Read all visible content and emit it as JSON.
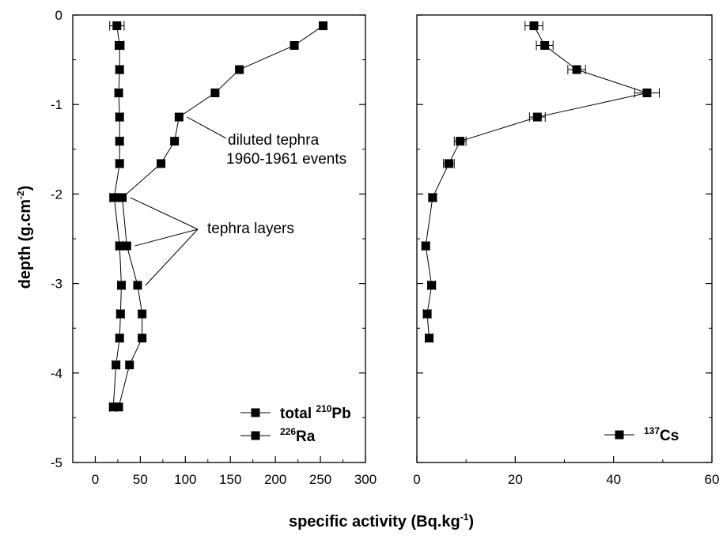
{
  "chart_data": [
    {
      "type": "scatter",
      "panel": "left",
      "xlabel": "specific activity (Bq.kg-1)",
      "ylabel": "depth (g.cm-2)",
      "xlim": [
        -25,
        300
      ],
      "ylim": [
        -5,
        0
      ],
      "xticks": [
        0,
        50,
        100,
        150,
        200,
        250,
        300
      ],
      "yticks": [
        0,
        -1,
        -2,
        -3,
        -4,
        -5
      ],
      "legend_position": "bottom-right",
      "series": [
        {
          "name": "total 210Pb",
          "legend": {
            "pre": "total ",
            "sup": "210",
            "post": "Pb"
          },
          "color": "#000000",
          "points": [
            {
              "x": 253,
              "y": -0.12
            },
            {
              "x": 221,
              "y": -0.34
            },
            {
              "x": 160,
              "y": -0.61
            },
            {
              "x": 133,
              "y": -0.87
            },
            {
              "x": 93,
              "y": -1.14
            },
            {
              "x": 88,
              "y": -1.41
            },
            {
              "x": 73,
              "y": -1.66
            },
            {
              "x": 30,
              "y": -2.04
            },
            {
              "x": 35,
              "y": -2.58
            },
            {
              "x": 47,
              "y": -3.02
            },
            {
              "x": 52,
              "y": -3.34
            },
            {
              "x": 52,
              "y": -3.61
            },
            {
              "x": 38,
              "y": -3.91
            },
            {
              "x": 26,
              "y": -4.38
            }
          ]
        },
        {
          "name": "226Ra",
          "legend": {
            "pre": "",
            "sup": "226",
            "post": "Ra"
          },
          "color": "#000000",
          "points": [
            {
              "x": 24,
              "y": -0.12,
              "err": 8
            },
            {
              "x": 27,
              "y": -0.34,
              "err": 5
            },
            {
              "x": 27,
              "y": -0.61,
              "err": 4
            },
            {
              "x": 26,
              "y": -0.87,
              "err": 4
            },
            {
              "x": 27,
              "y": -1.14,
              "err": 4
            },
            {
              "x": 27,
              "y": -1.41,
              "err": 4
            },
            {
              "x": 27,
              "y": -1.66,
              "err": 4
            },
            {
              "x": 21,
              "y": -2.04,
              "err": 5
            },
            {
              "x": 27,
              "y": -2.58,
              "err": 4
            },
            {
              "x": 29,
              "y": -3.02,
              "err": 4
            },
            {
              "x": 28,
              "y": -3.34,
              "err": 4
            },
            {
              "x": 27,
              "y": -3.61,
              "err": 4
            },
            {
              "x": 23,
              "y": -3.91,
              "err": 4
            },
            {
              "x": 20,
              "y": -4.38,
              "err": 4
            }
          ]
        }
      ],
      "annotations": [
        {
          "lines": [
            "diluted tephra",
            "1960-1961 events"
          ],
          "points_to": [
            {
              "x": 93,
              "y": -1.14
            }
          ]
        },
        {
          "lines": [
            "tephra layers"
          ],
          "points_to": [
            {
              "x": 30,
              "y": -2.04
            },
            {
              "x": 35,
              "y": -2.58
            },
            {
              "x": 47,
              "y": -3.02
            }
          ]
        }
      ]
    },
    {
      "type": "scatter",
      "panel": "right",
      "xlim": [
        0,
        60
      ],
      "ylim": [
        -5,
        0
      ],
      "xticks": [
        0,
        20,
        40,
        60
      ],
      "legend_position": "bottom-right",
      "series": [
        {
          "name": "137Cs",
          "legend": {
            "pre": "",
            "sup": "137",
            "post": "Cs"
          },
          "color": "#000000",
          "points": [
            {
              "x": 23.8,
              "y": -0.12,
              "err": 1.8
            },
            {
              "x": 26.0,
              "y": -0.34,
              "err": 1.7
            },
            {
              "x": 32.5,
              "y": -0.61,
              "err": 1.8
            },
            {
              "x": 46.8,
              "y": -0.87,
              "err": 2.5
            },
            {
              "x": 24.5,
              "y": -1.14,
              "err": 1.6
            },
            {
              "x": 8.8,
              "y": -1.41,
              "err": 1.2
            },
            {
              "x": 6.5,
              "y": -1.66,
              "err": 1.1
            },
            {
              "x": 3.2,
              "y": -2.04,
              "err": 0.8
            },
            {
              "x": 1.8,
              "y": -2.58,
              "err": 0.7
            },
            {
              "x": 3.0,
              "y": -3.02,
              "err": 0.8
            },
            {
              "x": 2.1,
              "y": -3.34,
              "err": 0.8
            },
            {
              "x": 2.5,
              "y": -3.61,
              "err": 0.8
            }
          ]
        }
      ]
    }
  ],
  "labels": {
    "x_title_main": "specific activity (Bq.kg",
    "x_title_sup": "-1",
    "x_title_end": ")",
    "y_title_main": "depth (g.cm",
    "y_title_sup": "-2",
    "y_title_end": ")"
  }
}
